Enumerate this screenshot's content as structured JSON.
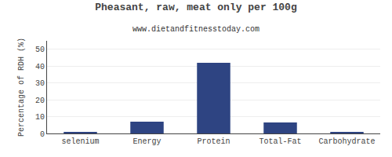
{
  "chart_data": {
    "type": "bar",
    "title": "Pheasant, raw, meat only per 100g",
    "subtitle": "www.dietandfitnesstoday.com",
    "categories": [
      "selenium",
      "Energy",
      "Protein",
      "Total-Fat",
      "Carbohydrate"
    ],
    "values": [
      0.5,
      7.0,
      42.0,
      6.5,
      0.5
    ],
    "color": "#2e4482",
    "ylabel": "Percentage of RDH (%)",
    "ylim": [
      0,
      55
    ],
    "yticks": [
      0,
      10,
      20,
      30,
      40,
      50
    ],
    "grid": true
  }
}
